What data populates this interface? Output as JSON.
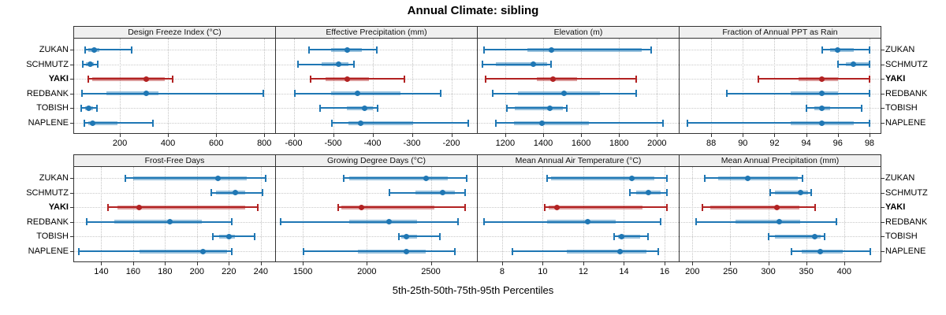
{
  "title": "Annual Climate: sibling",
  "xlabel": "5th-25th-50th-75th-95th Percentiles",
  "sites": [
    "ZUKAN",
    "SCHMUTZ",
    "YAKI",
    "REDBANK",
    "TOBISH",
    "NAPLENE"
  ],
  "highlight_site": "YAKI",
  "colors": {
    "normal": "#1F77B4",
    "highlight": "#B22222",
    "strip_bg": "#F0F0F0",
    "grid": "#C4C4C4",
    "border": "#333333"
  },
  "chart_data": {
    "type": "interval-dotplot",
    "percentiles": [
      "5th",
      "25th",
      "50th",
      "75th",
      "95th"
    ],
    "legend_note": "thin line = 5th-95th, thick bar = 25th-75th, dot = median",
    "panels": [
      {
        "title": "Design Freeze Index (°C)",
        "grid_position": [
          0,
          0
        ],
        "xlim": [
          10,
          845
        ],
        "ticks": [
          200,
          400,
          600,
          800
        ],
        "values": [
          [
            55,
            68,
            92,
            115,
            248
          ],
          [
            45,
            58,
            76,
            92,
            108
          ],
          [
            68,
            85,
            308,
            385,
            418
          ],
          [
            42,
            145,
            308,
            362,
            795
          ],
          [
            40,
            55,
            72,
            88,
            105
          ],
          [
            52,
            70,
            88,
            190,
            338
          ]
        ]
      },
      {
        "title": "Effective Precipitation (mm)",
        "grid_position": [
          0,
          1
        ],
        "xlim": [
          -645,
          -135
        ],
        "ticks": [
          -600,
          -500,
          -400,
          -300,
          -200
        ],
        "values": [
          [
            -562,
            -505,
            -465,
            -428,
            -390
          ],
          [
            -590,
            -530,
            -487,
            -462,
            -448
          ],
          [
            -558,
            -520,
            -464,
            -410,
            -320
          ],
          [
            -598,
            -505,
            -438,
            -330,
            -228
          ],
          [
            -533,
            -465,
            -420,
            -400,
            -388
          ],
          [
            -503,
            -462,
            -430,
            -298,
            -158
          ]
        ]
      },
      {
        "title": "Elevation (m)",
        "grid_position": [
          0,
          2
        ],
        "xlim": [
          1055,
          2115
        ],
        "ticks": [
          1200,
          1400,
          1600,
          1800,
          2000
        ],
        "values": [
          [
            1090,
            1315,
            1445,
            1920,
            1970
          ],
          [
            1080,
            1150,
            1350,
            1420,
            1440
          ],
          [
            1095,
            1365,
            1450,
            1580,
            1890
          ],
          [
            1135,
            1265,
            1510,
            1700,
            1890
          ],
          [
            1210,
            1250,
            1435,
            1505,
            1525
          ],
          [
            1150,
            1245,
            1395,
            1640,
            2030
          ]
        ]
      },
      {
        "title": "Fraction of Annual PPT as Rain",
        "grid_position": [
          0,
          3
        ],
        "xlim": [
          86.0,
          98.7
        ],
        "ticks": [
          88,
          90,
          92,
          94,
          96,
          98
        ],
        "values": [
          [
            95,
            95.5,
            96,
            97,
            98
          ],
          [
            96,
            96.5,
            97,
            98,
            98
          ],
          [
            91,
            93.5,
            95,
            96,
            98
          ],
          [
            89,
            93,
            95,
            96,
            98
          ],
          [
            94,
            94.5,
            95,
            95.5,
            97.5
          ],
          [
            86.5,
            93,
            95,
            97,
            98
          ]
        ]
      },
      {
        "title": "Frost-Free Days",
        "grid_position": [
          1,
          0
        ],
        "xlim": [
          123,
          249
        ],
        "ticks": [
          140,
          160,
          180,
          200,
          220,
          240
        ],
        "values": [
          [
            155,
            160,
            213,
            231,
            243
          ],
          [
            209,
            212,
            224,
            230,
            241
          ],
          [
            144,
            150,
            164,
            230,
            238
          ],
          [
            131,
            148,
            183,
            203,
            222
          ],
          [
            210,
            214,
            220,
            224,
            236
          ],
          [
            126,
            164,
            204,
            219,
            222
          ]
        ]
      },
      {
        "title": "Growing Degree Days (°C)",
        "grid_position": [
          1,
          1
        ],
        "xlim": [
          1290,
          2860
        ],
        "ticks": [
          1500,
          2000,
          2500
        ],
        "values": [
          [
            1820,
            1860,
            2460,
            2630,
            2780
          ],
          [
            2175,
            2380,
            2590,
            2690,
            2770
          ],
          [
            1775,
            1800,
            1960,
            2530,
            2765
          ],
          [
            1330,
            1860,
            2175,
            2395,
            2715
          ],
          [
            2250,
            2270,
            2310,
            2395,
            2570
          ],
          [
            1505,
            1930,
            2310,
            2460,
            2685
          ]
        ]
      },
      {
        "title": "Mean Annual Air Temperature (°C)",
        "grid_position": [
          1,
          2
        ],
        "xlim": [
          6.8,
          16.7
        ],
        "ticks": [
          8,
          10,
          12,
          14,
          16
        ],
        "values": [
          [
            10.2,
            10.4,
            14.4,
            15.5,
            16.1
          ],
          [
            14.3,
            14.6,
            15.2,
            15.8,
            16.1
          ],
          [
            10.1,
            10.3,
            10.7,
            14.9,
            16.1
          ],
          [
            7.1,
            10.2,
            12.2,
            13.6,
            15.8
          ],
          [
            13.5,
            13.7,
            13.9,
            14.8,
            15.2
          ],
          [
            8.5,
            11.2,
            13.8,
            15.1,
            15.7
          ]
        ]
      },
      {
        "title": "Mean Annual Precipitation (mm)",
        "grid_position": [
          1,
          3
        ],
        "xlim": [
          183,
          448
        ],
        "ticks": [
          200,
          250,
          300,
          350,
          400
        ],
        "values": [
          [
            216,
            234,
            273,
            339,
            345
          ],
          [
            302,
            309,
            343,
            352,
            357
          ],
          [
            213,
            224,
            311,
            341,
            362
          ],
          [
            205,
            257,
            314,
            342,
            390
          ],
          [
            300,
            309,
            361,
            369,
            374
          ],
          [
            331,
            344,
            369,
            398,
            434
          ]
        ]
      }
    ]
  }
}
